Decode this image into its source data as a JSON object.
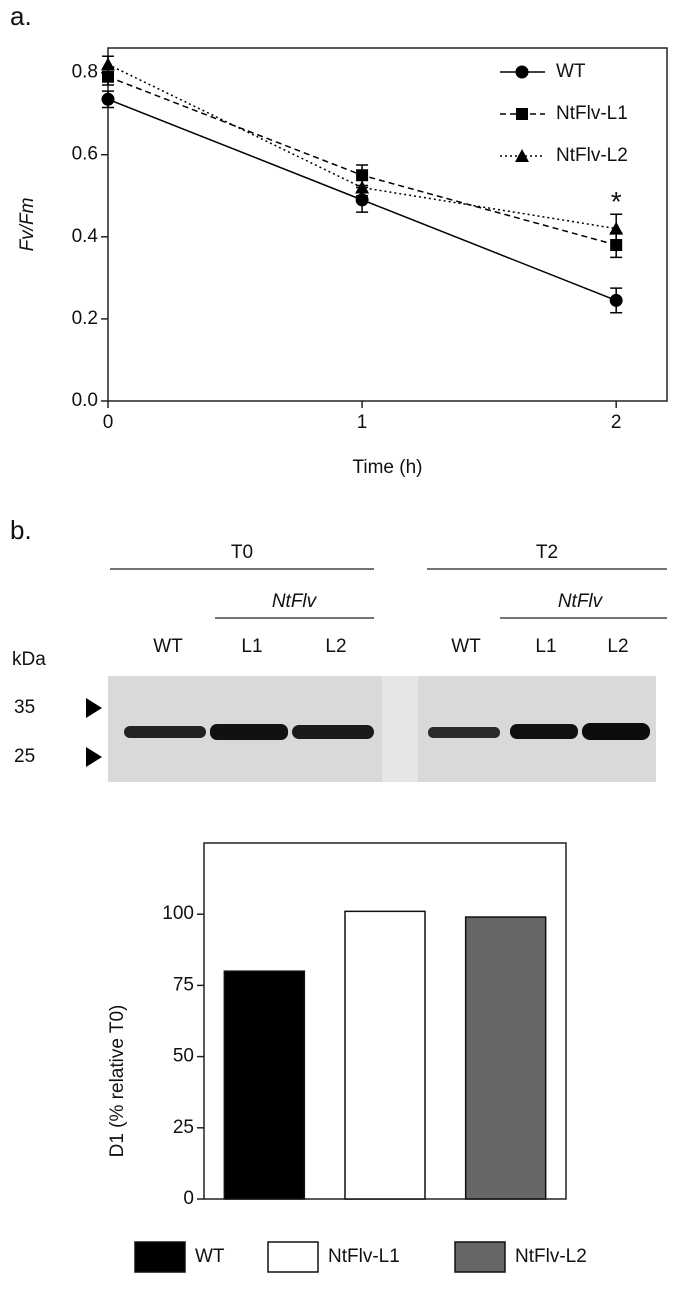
{
  "panel_labels": [
    "a.",
    "b."
  ],
  "chart_data": [
    {
      "type": "line",
      "xlabel": "Time (h)",
      "ylabel": "Fv/Fm",
      "x": [
        0,
        1,
        2
      ],
      "xlim": [
        0,
        2.2
      ],
      "xticks": [
        0,
        1,
        2
      ],
      "ylim": [
        0,
        0.86
      ],
      "yticks": [
        {
          "value": 0,
          "label": "0.0"
        },
        0.2,
        0.4,
        0.6,
        0.8
      ],
      "legend": "upper right",
      "series": [
        {
          "name": "WT",
          "color": "#000000",
          "marker": "circle",
          "dash": "solid",
          "values": [
            0.735,
            0.49,
            0.245
          ],
          "errors": [
            0.02,
            0.03,
            0.03
          ]
        },
        {
          "name": "NtFlv-L1",
          "color": "#000000",
          "marker": "square",
          "dash": "dashed",
          "values": [
            0.79,
            0.55,
            0.38
          ],
          "errors": [
            0.02,
            0.025,
            0.03
          ]
        },
        {
          "name": "NtFlv-L2",
          "color": "#000000",
          "marker": "triangle",
          "dash": "dotted",
          "values": [
            0.82,
            0.52,
            0.42
          ],
          "errors": [
            0.02,
            0.02,
            0.035
          ]
        }
      ],
      "annotations": [
        {
          "text": "*",
          "x": 2,
          "y": 0.5
        }
      ]
    },
    {
      "type": "bar",
      "ylabel": "D1 (% relative T0)",
      "categories": [
        "WT",
        "NtFlv-L1",
        "NtFlv-L2"
      ],
      "values": [
        80,
        101,
        99
      ],
      "colors": [
        "#000000",
        "#ffffff",
        "#666666"
      ],
      "ylim": [
        0,
        125
      ],
      "yticks": [
        0,
        25,
        50,
        75,
        100
      ],
      "legend": "bottom"
    }
  ],
  "blot": {
    "groups": [
      "T0",
      "T2"
    ],
    "subgroup": "NtFlv",
    "lanes": [
      "WT",
      "L1",
      "L2",
      "WT",
      "L1",
      "L2"
    ],
    "unit": "kDa",
    "markers": [
      "35",
      "25"
    ]
  }
}
